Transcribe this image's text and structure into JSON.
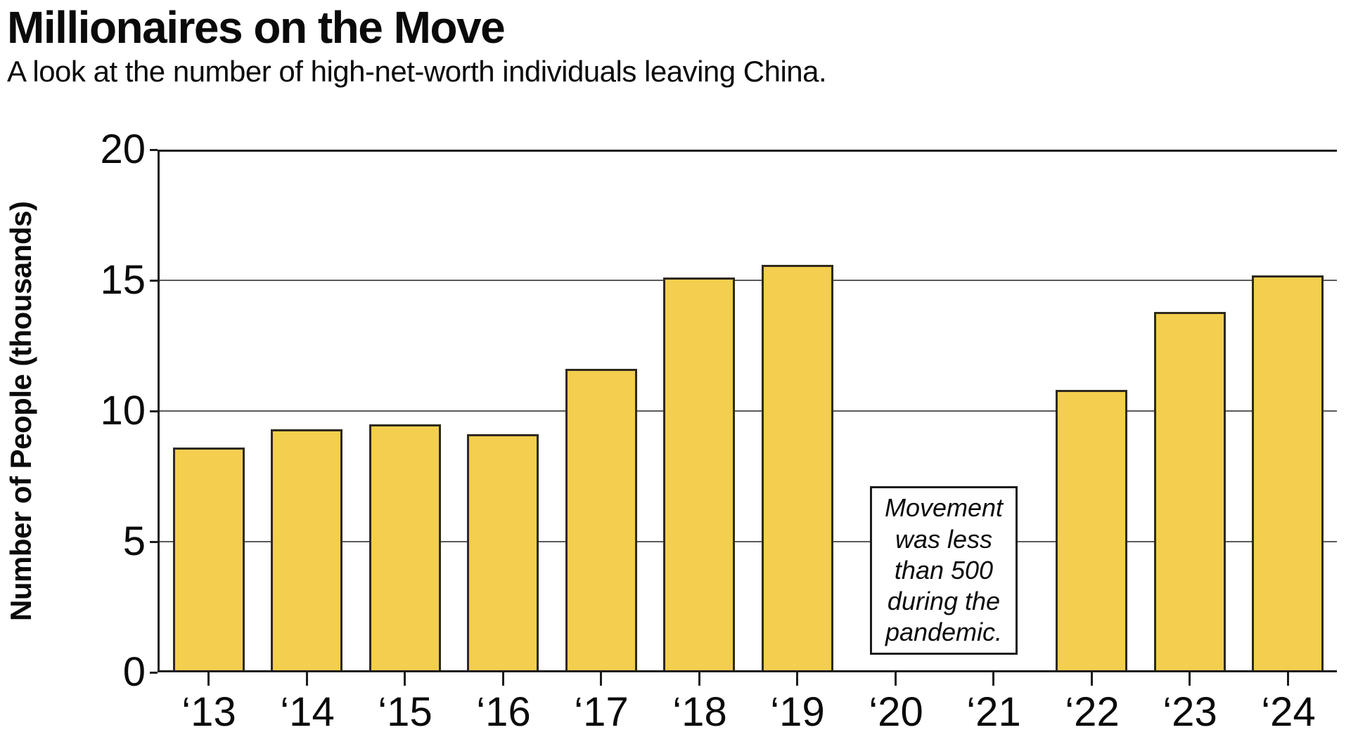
{
  "header": {
    "title": "Millionaires on the Move",
    "subtitle": "A look at the number of high-net-worth individuals leaving China."
  },
  "chart_data": {
    "type": "bar",
    "title": "Millionaires on the Move",
    "subtitle": "A look at the number of high-net-worth individuals leaving China.",
    "categories": [
      "‘13",
      "‘14",
      "‘15",
      "‘16",
      "‘17",
      "‘18",
      "‘19",
      "‘20",
      "‘21",
      "‘22",
      "‘23",
      "‘24"
    ],
    "values": [
      8.6,
      9.3,
      9.5,
      9.1,
      11.6,
      15.1,
      15.6,
      0,
      0,
      10.8,
      13.8,
      15.2
    ],
    "xlabel": "",
    "ylabel": "Number of People (thousands)",
    "ylim": [
      0,
      20
    ],
    "yticks": [
      0,
      5,
      10,
      15,
      20
    ],
    "grid": "horizontal",
    "legend": "none",
    "bar_color": "#F4CE4E",
    "bar_border_color": "#2E2A20",
    "annotation": {
      "text": "Movement was less than 500 during the pandemic.",
      "lines": [
        "Movement",
        "was less",
        "than 500",
        "during the",
        "pandemic."
      ]
    }
  }
}
